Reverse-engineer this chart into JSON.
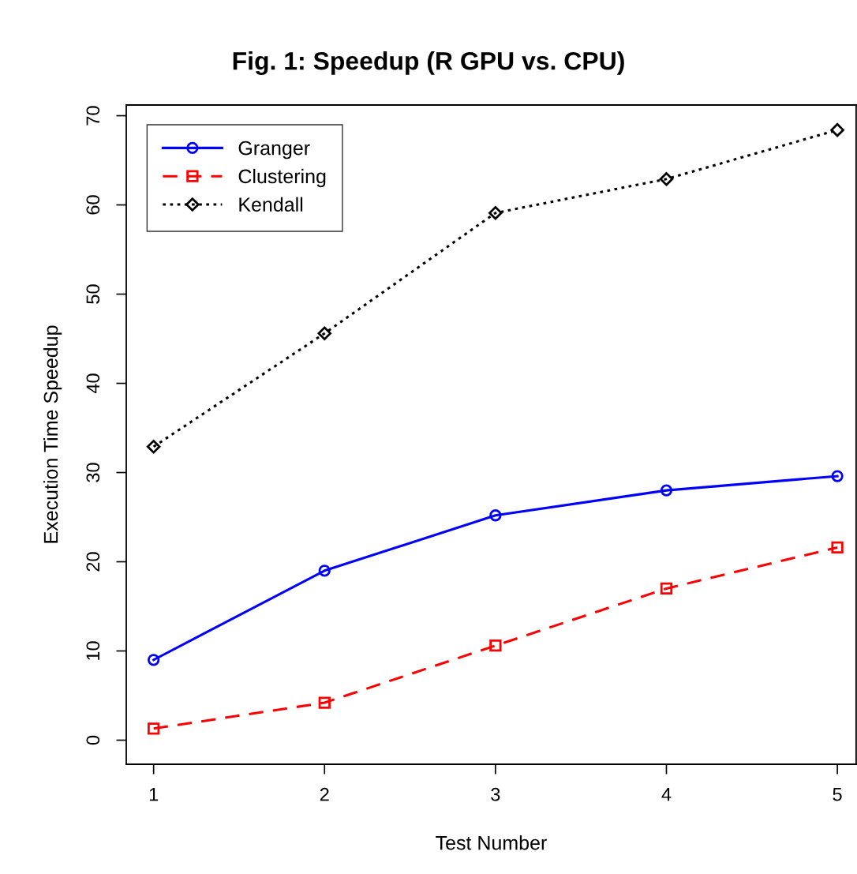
{
  "chart_data": {
    "type": "line",
    "title": "Fig. 1: Speedup (R GPU vs. CPU)",
    "xlabel": "Test Number",
    "ylabel": "Execution Time Speedup",
    "x": [
      1,
      2,
      3,
      4,
      5
    ],
    "series": [
      {
        "name": "Granger",
        "color": "#0000ff",
        "values": [
          9.0,
          19.0,
          25.2,
          28.0,
          29.6
        ],
        "marker": "circle",
        "line_style": "solid"
      },
      {
        "name": "Clustering",
        "color": "#ff0000",
        "values": [
          1.3,
          4.2,
          10.6,
          17.0,
          21.6
        ],
        "marker": "square",
        "line_style": "dashed"
      },
      {
        "name": "Kendall",
        "color": "#000000",
        "values": [
          32.9,
          45.6,
          59.1,
          62.9,
          68.4
        ],
        "marker": "diamond",
        "line_style": "dotted"
      }
    ],
    "xlim": [
      0.84,
      5.11
    ],
    "ylim": [
      -2.7,
      71.2
    ],
    "xticks": [
      1,
      2,
      3,
      4,
      5
    ],
    "yticks": [
      0,
      10,
      20,
      30,
      40,
      50,
      60,
      70
    ],
    "grid": false,
    "legend": "top left"
  }
}
